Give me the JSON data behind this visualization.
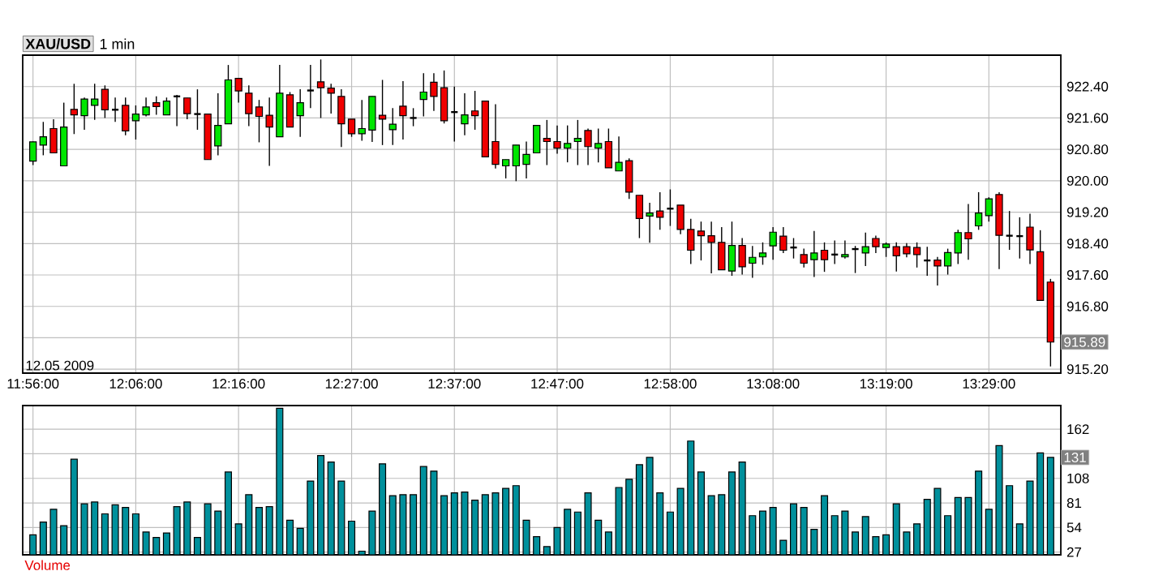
{
  "chart_data": [
    {
      "type": "candlestick",
      "title": "XAU/USD",
      "subtitle": "1 min",
      "x": [
        "2009-05-12T11:56",
        "2009-05-12T11:57",
        "2009-05-12T11:58",
        "2009-05-12T11:59",
        "2009-05-12T12:00",
        "2009-05-12T12:01",
        "2009-05-12T12:02",
        "2009-05-12T12:03",
        "2009-05-12T12:04",
        "2009-05-12T12:05",
        "2009-05-12T12:06",
        "2009-05-12T12:07",
        "2009-05-12T12:08",
        "2009-05-12T12:09",
        "2009-05-12T12:10",
        "2009-05-12T12:11",
        "2009-05-12T12:12",
        "2009-05-12T12:13",
        "2009-05-12T12:14",
        "2009-05-12T12:15",
        "2009-05-12T12:16",
        "2009-05-12T12:17",
        "2009-05-12T12:18",
        "2009-05-12T12:19",
        "2009-05-12T12:20",
        "2009-05-12T12:21",
        "2009-05-12T12:22",
        "2009-05-12T12:23",
        "2009-05-12T12:24",
        "2009-05-12T12:25",
        "2009-05-12T12:26",
        "2009-05-12T12:27",
        "2009-05-12T12:28",
        "2009-05-12T12:29",
        "2009-05-12T12:30",
        "2009-05-12T12:31",
        "2009-05-12T12:32",
        "2009-05-12T12:33",
        "2009-05-12T12:34",
        "2009-05-12T12:35",
        "2009-05-12T12:36",
        "2009-05-12T12:37",
        "2009-05-12T12:38",
        "2009-05-12T12:39",
        "2009-05-12T12:40",
        "2009-05-12T12:41",
        "2009-05-12T12:42",
        "2009-05-12T12:43",
        "2009-05-12T12:44",
        "2009-05-12T12:45",
        "2009-05-12T12:46",
        "2009-05-12T12:47",
        "2009-05-12T12:48",
        "2009-05-12T12:49",
        "2009-05-12T12:50",
        "2009-05-12T12:51",
        "2009-05-12T12:52",
        "2009-05-12T12:53",
        "2009-05-12T12:54",
        "2009-05-12T12:55",
        "2009-05-12T12:56",
        "2009-05-12T12:57",
        "2009-05-12T12:58",
        "2009-05-12T12:59",
        "2009-05-12T13:00",
        "2009-05-12T13:01",
        "2009-05-12T13:02",
        "2009-05-12T13:03",
        "2009-05-12T13:04",
        "2009-05-12T13:05",
        "2009-05-12T13:06",
        "2009-05-12T13:07",
        "2009-05-12T13:08",
        "2009-05-12T13:09",
        "2009-05-12T13:10",
        "2009-05-12T13:11",
        "2009-05-12T13:12",
        "2009-05-12T13:13",
        "2009-05-12T13:14",
        "2009-05-12T13:15",
        "2009-05-12T13:16",
        "2009-05-12T13:17",
        "2009-05-12T13:18",
        "2009-05-12T13:19",
        "2009-05-12T13:20",
        "2009-05-12T13:21",
        "2009-05-12T13:22",
        "2009-05-12T13:23",
        "2009-05-12T13:24",
        "2009-05-12T13:25",
        "2009-05-12T13:26",
        "2009-05-12T13:27",
        "2009-05-12T13:28",
        "2009-05-12T13:29",
        "2009-05-12T13:30",
        "2009-05-12T13:31",
        "2009-05-12T13:32",
        "2009-05-12T13:33",
        "2009-05-12T13:34",
        "2009-05-12T13:35"
      ],
      "ohlc": [
        [
          920.5,
          921.0,
          920.4,
          920.99
        ],
        [
          920.91,
          921.5,
          920.65,
          921.12
        ],
        [
          921.33,
          921.57,
          920.71,
          920.71
        ],
        [
          920.38,
          921.99,
          920.38,
          921.37
        ],
        [
          921.82,
          922.47,
          921.19,
          921.68
        ],
        [
          921.66,
          922.12,
          921.3,
          922.08
        ],
        [
          921.92,
          922.47,
          921.55,
          922.08
        ],
        [
          922.33,
          922.43,
          921.6,
          921.81
        ],
        [
          921.81,
          922.12,
          921.5,
          921.81
        ],
        [
          921.92,
          922.12,
          921.16,
          921.27
        ],
        [
          921.53,
          921.92,
          921.05,
          921.7
        ],
        [
          921.68,
          922.12,
          921.64,
          921.88
        ],
        [
          921.99,
          922.15,
          921.68,
          921.89
        ],
        [
          921.68,
          922.12,
          921.68,
          922.03
        ],
        [
          922.15,
          922.19,
          921.39,
          922.15
        ],
        [
          922.11,
          922.11,
          921.57,
          921.71
        ],
        [
          921.7,
          922.33,
          921.3,
          921.7
        ],
        [
          921.7,
          921.7,
          920.54,
          920.54
        ],
        [
          920.89,
          922.23,
          920.65,
          921.41
        ],
        [
          921.45,
          922.95,
          921.45,
          922.57
        ],
        [
          922.61,
          922.61,
          921.99,
          922.29
        ],
        [
          922.23,
          922.43,
          921.39,
          921.71
        ],
        [
          921.88,
          922.06,
          920.98,
          921.64
        ],
        [
          921.67,
          922.12,
          920.38,
          921.37
        ],
        [
          921.12,
          922.95,
          921.12,
          922.23
        ],
        [
          922.19,
          922.26,
          921.37,
          921.37
        ],
        [
          921.66,
          922.33,
          921.12,
          921.99
        ],
        [
          922.3,
          922.95,
          921.85,
          922.3
        ],
        [
          922.52,
          923.09,
          921.6,
          922.37
        ],
        [
          922.36,
          922.47,
          921.71,
          922.23
        ],
        [
          922.15,
          922.33,
          920.86,
          921.45
        ],
        [
          921.57,
          921.57,
          921.12,
          921.2
        ],
        [
          921.2,
          922.06,
          921.02,
          921.33
        ],
        [
          921.29,
          922.15,
          920.99,
          922.15
        ],
        [
          921.67,
          922.57,
          920.91,
          921.57
        ],
        [
          921.3,
          921.85,
          920.91,
          921.44
        ],
        [
          921.9,
          922.54,
          921.05,
          921.66
        ],
        [
          921.6,
          921.85,
          921.39,
          921.6
        ],
        [
          922.07,
          922.74,
          921.64,
          922.26
        ],
        [
          922.51,
          922.74,
          921.78,
          922.15
        ],
        [
          922.37,
          922.81,
          921.46,
          921.53
        ],
        [
          921.75,
          922.4,
          921.0,
          921.75
        ],
        [
          921.45,
          922.23,
          921.16,
          921.68
        ],
        [
          921.78,
          922.29,
          921.3,
          921.66
        ],
        [
          922.03,
          922.03,
          920.61,
          920.61
        ],
        [
          921.0,
          921.95,
          920.31,
          920.42
        ],
        [
          920.38,
          920.54,
          920.06,
          920.54
        ],
        [
          920.38,
          920.91,
          919.99,
          920.91
        ],
        [
          920.42,
          921.0,
          920.06,
          920.67
        ],
        [
          920.71,
          921.41,
          920.71,
          921.41
        ],
        [
          921.08,
          921.55,
          920.4,
          921.0
        ],
        [
          921.0,
          921.41,
          920.69,
          920.83
        ],
        [
          920.83,
          921.41,
          920.47,
          920.95
        ],
        [
          921.0,
          921.55,
          920.4,
          921.08
        ],
        [
          921.28,
          921.33,
          920.4,
          920.87
        ],
        [
          920.83,
          921.33,
          920.47,
          920.95
        ],
        [
          921.0,
          921.33,
          920.33,
          920.33
        ],
        [
          920.25,
          921.13,
          920.25,
          920.47
        ],
        [
          920.51,
          920.57,
          919.54,
          919.71
        ],
        [
          919.63,
          919.63,
          918.54,
          919.04
        ],
        [
          919.1,
          919.44,
          918.42,
          919.18
        ],
        [
          919.23,
          919.71,
          918.75,
          919.07
        ],
        [
          919.29,
          919.78,
          918.85,
          919.29
        ],
        [
          919.38,
          919.38,
          918.64,
          918.76
        ],
        [
          918.76,
          919.03,
          917.88,
          918.23
        ],
        [
          918.72,
          918.96,
          917.97,
          918.6
        ],
        [
          918.6,
          918.96,
          917.64,
          918.43
        ],
        [
          918.43,
          918.82,
          917.73,
          917.73
        ],
        [
          917.7,
          918.96,
          917.58,
          918.35
        ],
        [
          918.35,
          918.54,
          917.61,
          917.81
        ],
        [
          917.9,
          918.34,
          917.53,
          918.05
        ],
        [
          918.06,
          918.43,
          917.86,
          918.16
        ],
        [
          918.34,
          918.82,
          917.99,
          918.69
        ],
        [
          918.59,
          918.82,
          918.16,
          918.23
        ],
        [
          918.3,
          918.54,
          918.02,
          918.3
        ],
        [
          918.12,
          918.27,
          917.79,
          917.9
        ],
        [
          917.99,
          918.72,
          917.55,
          918.16
        ],
        [
          918.23,
          918.43,
          917.68,
          917.99
        ],
        [
          918.12,
          918.48,
          917.88,
          918.12
        ],
        [
          918.06,
          918.48,
          918.02,
          918.12
        ],
        [
          918.26,
          918.34,
          917.65,
          918.26
        ],
        [
          918.16,
          918.68,
          917.83,
          918.32
        ],
        [
          918.53,
          918.6,
          918.16,
          918.32
        ],
        [
          918.3,
          918.43,
          918.06,
          918.39
        ],
        [
          918.32,
          918.43,
          917.69,
          918.09
        ],
        [
          918.32,
          918.41,
          918.05,
          918.14
        ],
        [
          918.3,
          918.43,
          917.79,
          918.12
        ],
        [
          917.97,
          918.32,
          917.58,
          917.97
        ],
        [
          917.98,
          918.06,
          917.33,
          917.83
        ],
        [
          917.83,
          918.27,
          917.61,
          918.17
        ],
        [
          918.16,
          918.75,
          917.88,
          918.68
        ],
        [
          918.68,
          919.41,
          917.99,
          918.52
        ],
        [
          918.85,
          919.71,
          918.75,
          919.18
        ],
        [
          919.11,
          919.58,
          918.96,
          919.54
        ],
        [
          919.65,
          919.71,
          917.75,
          918.61
        ],
        [
          918.6,
          919.23,
          918.24,
          918.6
        ],
        [
          918.59,
          919.07,
          918.02,
          918.59
        ],
        [
          918.82,
          919.16,
          917.88,
          918.24
        ],
        [
          918.19,
          918.74,
          916.95,
          916.95
        ],
        [
          917.42,
          917.5,
          915.27,
          915.89
        ]
      ],
      "xlim": [
        "2009-05-12T11:55",
        "2009-05-12T13:36"
      ],
      "xticks": [
        {
          "value": "2009-05-12T11:56",
          "label": "11:56:00"
        },
        {
          "value": "2009-05-12T12:06",
          "label": "12:06:00"
        },
        {
          "value": "2009-05-12T12:16",
          "label": "12:16:00"
        },
        {
          "value": "2009-05-12T12:27",
          "label": "12:27:00"
        },
        {
          "value": "2009-05-12T12:37",
          "label": "12:37:00"
        },
        {
          "value": "2009-05-12T12:47",
          "label": "12:47:00"
        },
        {
          "value": "2009-05-12T12:58",
          "label": "12:58:00"
        },
        {
          "value": "2009-05-12T13:08",
          "label": "13:08:00"
        },
        {
          "value": "2009-05-12T13:19",
          "label": "13:19:00"
        },
        {
          "value": "2009-05-12T13:29",
          "label": "13:29:00"
        }
      ],
      "ylim": [
        915.1,
        923.2
      ],
      "yticks": [
        {
          "value": 915.2,
          "label": "915.20"
        },
        {
          "value": 916.0,
          "label": null
        },
        {
          "value": 916.8,
          "label": "916.80"
        },
        {
          "value": 917.6,
          "label": "917.60"
        },
        {
          "value": 918.4,
          "label": "918.40"
        },
        {
          "value": 919.2,
          "label": "919.20"
        },
        {
          "value": 920.0,
          "label": "920.00"
        },
        {
          "value": 920.8,
          "label": "920.80"
        },
        {
          "value": 921.6,
          "label": "921.60"
        },
        {
          "value": 922.4,
          "label": "922.40"
        }
      ],
      "grid": true,
      "annotations": [
        "12.05 2009",
        {
          "text": "915.89",
          "x": "2009-05-12T13:35",
          "y": 915.89
        }
      ]
    },
    {
      "type": "bar",
      "title": "Volume",
      "color": "#00909c",
      "x": [
        "2009-05-12T11:56",
        "2009-05-12T11:57",
        "2009-05-12T11:58",
        "2009-05-12T11:59",
        "2009-05-12T12:00",
        "2009-05-12T12:01",
        "2009-05-12T12:02",
        "2009-05-12T12:03",
        "2009-05-12T12:04",
        "2009-05-12T12:05",
        "2009-05-12T12:06",
        "2009-05-12T12:07",
        "2009-05-12T12:08",
        "2009-05-12T12:09",
        "2009-05-12T12:10",
        "2009-05-12T12:11",
        "2009-05-12T12:12",
        "2009-05-12T12:13",
        "2009-05-12T12:14",
        "2009-05-12T12:15",
        "2009-05-12T12:16",
        "2009-05-12T12:17",
        "2009-05-12T12:18",
        "2009-05-12T12:19",
        "2009-05-12T12:20",
        "2009-05-12T12:21",
        "2009-05-12T12:22",
        "2009-05-12T12:23",
        "2009-05-12T12:24",
        "2009-05-12T12:25",
        "2009-05-12T12:26",
        "2009-05-12T12:27",
        "2009-05-12T12:28",
        "2009-05-12T12:29",
        "2009-05-12T12:30",
        "2009-05-12T12:31",
        "2009-05-12T12:32",
        "2009-05-12T12:33",
        "2009-05-12T12:34",
        "2009-05-12T12:35",
        "2009-05-12T12:36",
        "2009-05-12T12:37",
        "2009-05-12T12:38",
        "2009-05-12T12:39",
        "2009-05-12T12:40",
        "2009-05-12T12:41",
        "2009-05-12T12:42",
        "2009-05-12T12:43",
        "2009-05-12T12:44",
        "2009-05-12T12:45",
        "2009-05-12T12:46",
        "2009-05-12T12:47",
        "2009-05-12T12:48",
        "2009-05-12T12:49",
        "2009-05-12T12:50",
        "2009-05-12T12:51",
        "2009-05-12T12:52",
        "2009-05-12T12:53",
        "2009-05-12T12:54",
        "2009-05-12T12:55",
        "2009-05-12T12:56",
        "2009-05-12T12:57",
        "2009-05-12T12:58",
        "2009-05-12T12:59",
        "2009-05-12T13:00",
        "2009-05-12T13:01",
        "2009-05-12T13:02",
        "2009-05-12T13:03",
        "2009-05-12T13:04",
        "2009-05-12T13:05",
        "2009-05-12T13:06",
        "2009-05-12T13:07",
        "2009-05-12T13:08",
        "2009-05-12T13:09",
        "2009-05-12T13:10",
        "2009-05-12T13:11",
        "2009-05-12T13:12",
        "2009-05-12T13:13",
        "2009-05-12T13:14",
        "2009-05-12T13:15",
        "2009-05-12T13:16",
        "2009-05-12T13:17",
        "2009-05-12T13:18",
        "2009-05-12T13:19",
        "2009-05-12T13:20",
        "2009-05-12T13:21",
        "2009-05-12T13:22",
        "2009-05-12T13:23",
        "2009-05-12T13:24",
        "2009-05-12T13:25",
        "2009-05-12T13:26",
        "2009-05-12T13:27",
        "2009-05-12T13:28",
        "2009-05-12T13:29",
        "2009-05-12T13:30",
        "2009-05-12T13:31",
        "2009-05-12T13:32",
        "2009-05-12T13:33",
        "2009-05-12T13:34",
        "2009-05-12T13:35"
      ],
      "values": [
        46,
        60,
        74,
        56,
        129,
        80,
        82,
        69,
        79,
        76,
        69,
        49,
        43,
        48,
        77,
        82,
        43,
        80,
        72,
        115,
        58,
        90,
        76,
        77,
        185,
        62,
        53,
        105,
        133,
        126,
        105,
        61,
        28,
        72,
        124,
        89,
        90,
        90,
        121,
        116,
        89,
        92,
        93,
        84,
        90,
        92,
        97,
        100,
        62,
        44,
        33,
        54,
        74,
        71,
        92,
        62,
        49,
        98,
        107,
        123,
        131,
        92,
        71,
        97,
        149,
        115,
        89,
        90,
        115,
        126,
        67,
        72,
        76,
        40,
        80,
        76,
        52,
        89,
        67,
        72,
        49,
        66,
        44,
        46,
        80,
        49,
        58,
        85,
        97,
        67,
        87,
        87,
        116,
        74,
        144,
        100,
        58,
        105,
        136,
        131
      ],
      "xlim": [
        "2009-05-12T11:55",
        "2009-05-12T13:36"
      ],
      "xticks": [
        {
          "value": "2009-05-12T11:56",
          "label": null
        },
        {
          "value": "2009-05-12T12:06",
          "label": null
        },
        {
          "value": "2009-05-12T12:16",
          "label": null
        },
        {
          "value": "2009-05-12T12:27",
          "label": null
        },
        {
          "value": "2009-05-12T12:37",
          "label": null
        },
        {
          "value": "2009-05-12T12:47",
          "label": null
        },
        {
          "value": "2009-05-12T12:58",
          "label": null
        },
        {
          "value": "2009-05-12T13:08",
          "label": null
        },
        {
          "value": "2009-05-12T13:19",
          "label": null
        },
        {
          "value": "2009-05-12T13:29",
          "label": null
        }
      ],
      "ylim": [
        24,
        188
      ],
      "yticks": [
        27,
        54,
        81,
        108,
        {
          "value": 135,
          "label": null
        },
        162
      ],
      "grid": true,
      "tick_labels": "y",
      "annotations": [
        {
          "text": "131",
          "x": "2009-05-12T13:35",
          "y": 131
        }
      ]
    }
  ]
}
